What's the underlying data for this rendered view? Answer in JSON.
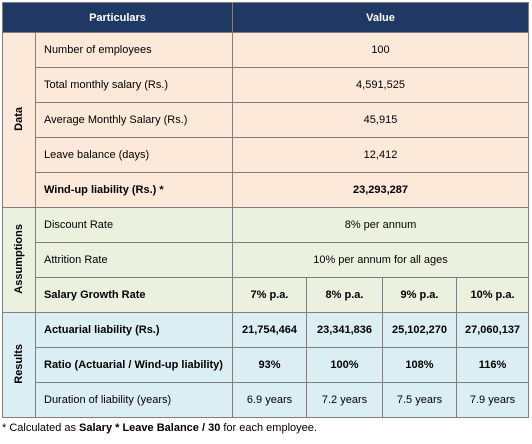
{
  "header": {
    "particulars": "Particulars",
    "value": "Value"
  },
  "sections": [
    {
      "label": "Data",
      "rows": [
        {
          "label": "Number of employees",
          "value": "100"
        },
        {
          "label": "Total monthly salary (Rs.)",
          "value": "4,591,525"
        },
        {
          "label": "Average Monthly Salary (Rs.)",
          "value": "45,915"
        },
        {
          "label": "Leave balance (days)",
          "value": "12,412"
        },
        {
          "label": "Wind-up liability (Rs.) *",
          "value": "23,293,287"
        }
      ]
    },
    {
      "label": "Assumptions",
      "rows": [
        {
          "label": "Discount Rate",
          "value": "8% per annum"
        },
        {
          "label": "Attrition Rate",
          "value": "10% per annum for all ages"
        },
        {
          "label": "Salary Growth Rate",
          "values": [
            "7% p.a.",
            "8% p.a.",
            "9% p.a.",
            "10% p.a."
          ]
        }
      ]
    },
    {
      "label": "Results",
      "rows": [
        {
          "label": "Actuarial liability (Rs.)",
          "values": [
            "21,754,464",
            "23,341,836",
            "25,102,270",
            "27,060,137"
          ]
        },
        {
          "label": "Ratio (Actuarial / Wind-up liability)",
          "values": [
            "93%",
            "100%",
            "108%",
            "116%"
          ]
        },
        {
          "label": "Duration of liability (years)",
          "values": [
            "6.9 years",
            "7.2 years",
            "7.5 years",
            "7.9 years"
          ]
        }
      ]
    }
  ],
  "footnote": {
    "prefix": "* Calculated as ",
    "formula": "Salary * Leave Balance / 30",
    "suffix": " for each employee."
  }
}
